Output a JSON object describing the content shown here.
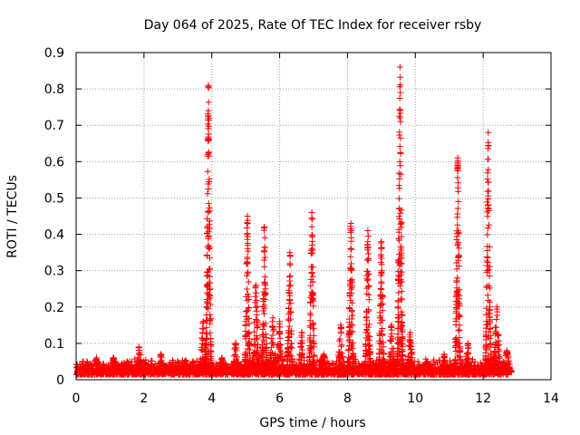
{
  "chart_data": {
    "type": "scatter",
    "title": "Day 064 of 2025, Rate Of TEC Index for receiver rsby",
    "xlabel": "GPS time / hours",
    "ylabel": "ROTI / TECUs",
    "xlim": [
      0,
      14
    ],
    "ylim": [
      0,
      0.9
    ],
    "xticks": [
      "0",
      "2",
      "4",
      "6",
      "8",
      "10",
      "12",
      "14"
    ],
    "yticks": [
      "0",
      "0.1",
      "0.2",
      "0.3",
      "0.4",
      "0.5",
      "0.6",
      "0.7",
      "0.8",
      "0.9"
    ],
    "grid": true,
    "marker": "plus",
    "color": "#ff0000",
    "series": [
      {
        "name": "ROTI",
        "baseline_hours": [
          0,
          12.75
        ],
        "baseline_level": 0.02,
        "spikes": [
          {
            "x": 0.2,
            "y": 0.05
          },
          {
            "x": 0.6,
            "y": 0.06
          },
          {
            "x": 1.1,
            "y": 0.06
          },
          {
            "x": 1.5,
            "y": 0.05
          },
          {
            "x": 1.85,
            "y": 0.09
          },
          {
            "x": 2.5,
            "y": 0.07
          },
          {
            "x": 3.0,
            "y": 0.05
          },
          {
            "x": 3.45,
            "y": 0.05
          },
          {
            "x": 3.75,
            "y": 0.16
          },
          {
            "x": 3.9,
            "y": 0.81
          },
          {
            "x": 4.3,
            "y": 0.06
          },
          {
            "x": 4.7,
            "y": 0.1
          },
          {
            "x": 5.05,
            "y": 0.45
          },
          {
            "x": 5.3,
            "y": 0.26
          },
          {
            "x": 5.55,
            "y": 0.42
          },
          {
            "x": 5.8,
            "y": 0.17
          },
          {
            "x": 6.0,
            "y": 0.16
          },
          {
            "x": 6.3,
            "y": 0.35
          },
          {
            "x": 6.65,
            "y": 0.13
          },
          {
            "x": 6.95,
            "y": 0.46
          },
          {
            "x": 7.3,
            "y": 0.07
          },
          {
            "x": 7.8,
            "y": 0.15
          },
          {
            "x": 8.1,
            "y": 0.43
          },
          {
            "x": 8.6,
            "y": 0.41
          },
          {
            "x": 9.0,
            "y": 0.38
          },
          {
            "x": 9.3,
            "y": 0.15
          },
          {
            "x": 9.55,
            "y": 0.86
          },
          {
            "x": 9.85,
            "y": 0.13
          },
          {
            "x": 10.35,
            "y": 0.05
          },
          {
            "x": 10.85,
            "y": 0.07
          },
          {
            "x": 11.25,
            "y": 0.61
          },
          {
            "x": 11.55,
            "y": 0.1
          },
          {
            "x": 12.05,
            "y": 0.02
          },
          {
            "x": 12.15,
            "y": 0.68
          },
          {
            "x": 12.4,
            "y": 0.2
          },
          {
            "x": 12.7,
            "y": 0.08
          }
        ]
      }
    ]
  }
}
